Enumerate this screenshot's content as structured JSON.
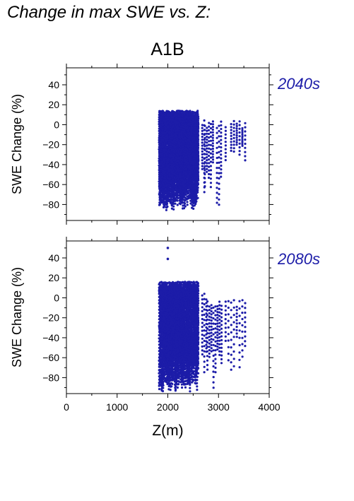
{
  "page_heading": "Change in max SWE vs. Z:",
  "scenario": "A1B",
  "colors": {
    "points": "#1c1ca8",
    "period_label": "#1c1ca8",
    "frame": "#000000"
  },
  "chart_data": [
    {
      "type": "scatter",
      "panel_label": "2040s",
      "ylabel": "SWE Change (%)",
      "xlabel": "",
      "xlim": [
        0,
        4000
      ],
      "ylim": [
        -96,
        57
      ],
      "yticks": [
        40,
        20,
        0,
        -20,
        -40,
        -60,
        -80
      ],
      "xticks": [
        0,
        1000,
        2000,
        3000,
        4000
      ],
      "show_x_tick_labels": false,
      "grid": false,
      "point_groups": [
        {
          "x": [
            1830,
            2600
          ],
          "y": [
            -86,
            14
          ],
          "density": "high"
        },
        {
          "x": [
            2600,
            2720
          ],
          "y": [
            -78,
            6
          ],
          "density": "medium"
        },
        {
          "x": [
            2730,
            3060
          ],
          "y": [
            -81,
            4
          ],
          "density": "medium"
        },
        {
          "x": [
            3140,
            3540
          ],
          "y": [
            -38,
            4
          ],
          "density": "low"
        }
      ]
    },
    {
      "type": "scatter",
      "panel_label": "2080s",
      "ylabel": "SWE Change (%)",
      "xlabel": "Z(m)",
      "xlim": [
        0,
        4000
      ],
      "ylim": [
        -96,
        57
      ],
      "yticks": [
        40,
        20,
        0,
        -20,
        -40,
        -60,
        -80
      ],
      "xticks": [
        0,
        1000,
        2000,
        3000,
        4000
      ],
      "show_x_tick_labels": true,
      "grid": false,
      "point_groups": [
        {
          "x": [
            1830,
            2600
          ],
          "y": [
            -94,
            16
          ],
          "density": "high"
        },
        {
          "x": [
            2600,
            2760
          ],
          "y": [
            -90,
            5
          ],
          "density": "medium"
        },
        {
          "x": [
            2780,
            3080
          ],
          "y": [
            -92,
            -3
          ],
          "density": "medium"
        },
        {
          "x": [
            3140,
            3540
          ],
          "y": [
            -74,
            -2
          ],
          "density": "low"
        }
      ],
      "outliers": [
        {
          "x": 2000,
          "y": 50
        },
        {
          "x": 2000,
          "y": 39
        }
      ]
    }
  ]
}
